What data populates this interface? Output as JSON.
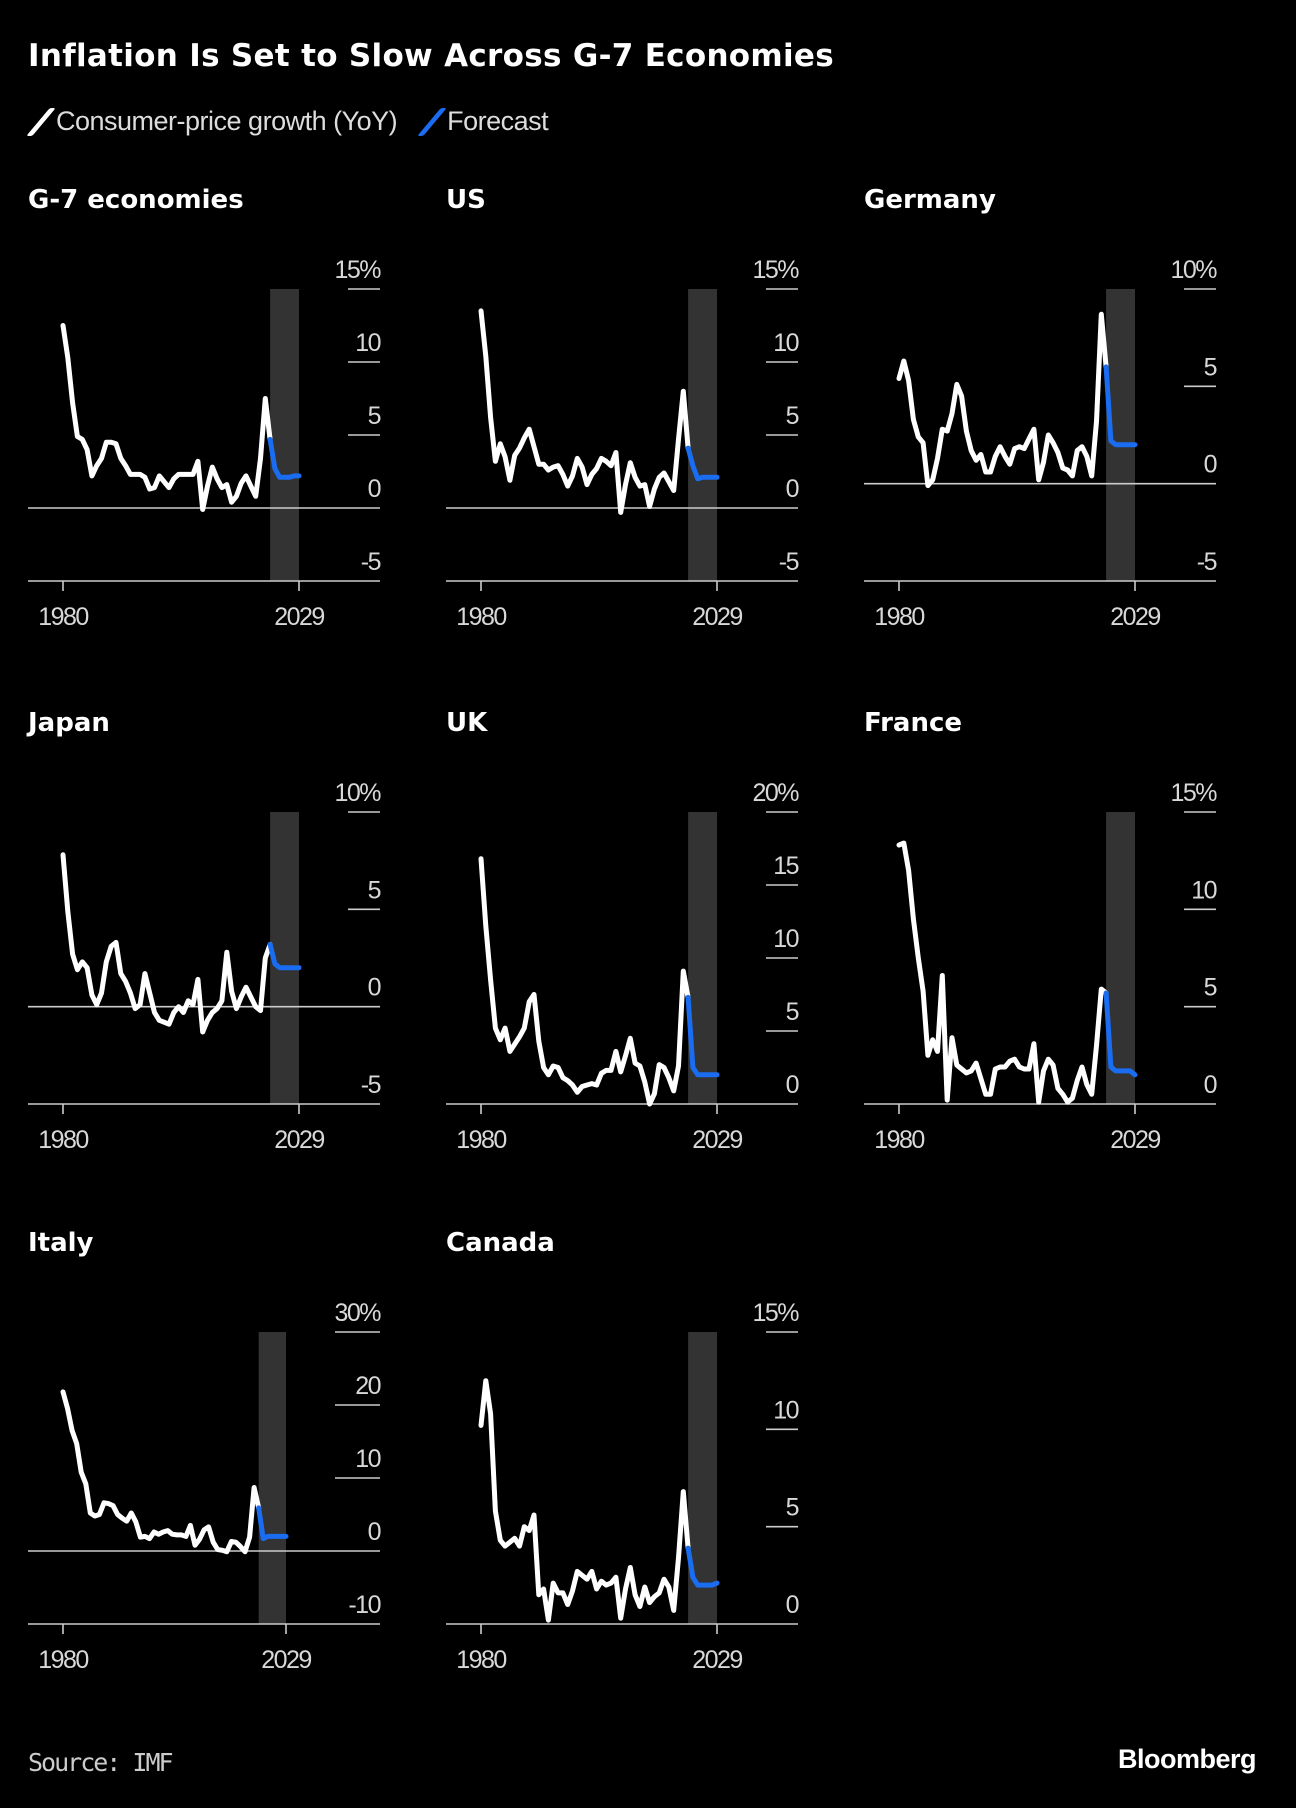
{
  "header": {
    "title": "Inflation Is Set to Slow Across G-7 Economies",
    "legend": [
      {
        "label": "Consumer-price growth (YoY)",
        "color": "#ffffff"
      },
      {
        "label": "Forecast",
        "color": "#1a6cf0"
      }
    ]
  },
  "footer": {
    "source": "Source: IMF",
    "brand": "Bloomberg"
  },
  "colors": {
    "actual": "#ffffff",
    "forecast": "#1a6cf0",
    "forecast_shade": "#333333",
    "axis": "#cccccc"
  },
  "chart_data": [
    {
      "type": "line",
      "title": "G-7 economies",
      "ylim": [
        -5,
        15
      ],
      "yticks": [
        -5,
        0,
        5,
        10,
        15
      ],
      "ytick_labels": [
        "-5",
        "0",
        "5",
        "10",
        "15%"
      ],
      "xticks": [
        "1980",
        "2029"
      ],
      "forecast_shaded": [
        "2023",
        "2029"
      ],
      "actual": {
        "start": 1980,
        "values": [
          12.5,
          10.3,
          7.2,
          4.9,
          4.7,
          4.0,
          2.2,
          2.9,
          3.4,
          4.5,
          4.5,
          4.4,
          3.4,
          2.9,
          2.3,
          2.3,
          2.3,
          2.1,
          1.3,
          1.4,
          2.2,
          1.8,
          1.4,
          2.0,
          2.3,
          2.3,
          2.3,
          2.3,
          3.2,
          -0.1,
          1.5,
          2.8,
          2.0,
          1.4,
          1.6,
          0.4,
          0.8,
          1.7,
          2.2,
          1.5,
          0.8,
          3.4,
          7.5,
          4.7
        ]
      },
      "forecast": {
        "start": 2023,
        "values": [
          4.7,
          2.7,
          2.1,
          2.1,
          2.1,
          2.2,
          2.2
        ]
      }
    },
    {
      "type": "line",
      "title": "US",
      "ylim": [
        -5,
        15
      ],
      "yticks": [
        -5,
        0,
        5,
        10,
        15
      ],
      "ytick_labels": [
        "-5",
        "0",
        "5",
        "10",
        "15%"
      ],
      "xticks": [
        "1980",
        "2029"
      ],
      "forecast_shaded": [
        "2023",
        "2029"
      ],
      "actual": {
        "start": 1980,
        "values": [
          13.5,
          10.4,
          6.2,
          3.2,
          4.4,
          3.5,
          1.9,
          3.6,
          4.1,
          4.8,
          5.4,
          4.2,
          3.0,
          3.0,
          2.6,
          2.8,
          2.9,
          2.3,
          1.5,
          2.2,
          3.4,
          2.8,
          1.6,
          2.3,
          2.7,
          3.4,
          3.2,
          2.9,
          3.8,
          -0.3,
          1.6,
          3.1,
          2.1,
          1.5,
          1.6,
          0.1,
          1.3,
          2.1,
          2.4,
          1.8,
          1.2,
          4.7,
          8.0,
          4.1
        ]
      },
      "forecast": {
        "start": 2023,
        "values": [
          4.1,
          2.9,
          2.0,
          2.1,
          2.1,
          2.1,
          2.1
        ]
      }
    },
    {
      "type": "line",
      "title": "Germany",
      "ylim": [
        -5,
        10
      ],
      "yticks": [
        -5,
        0,
        5,
        10
      ],
      "ytick_labels": [
        "-5",
        "0",
        "5",
        "10%"
      ],
      "xticks": [
        "1980",
        "2029"
      ],
      "forecast_shaded": [
        "2023",
        "2029"
      ],
      "actual": {
        "start": 1980,
        "values": [
          5.4,
          6.3,
          5.3,
          3.3,
          2.4,
          2.1,
          -0.1,
          0.2,
          1.3,
          2.8,
          2.7,
          3.6,
          5.1,
          4.5,
          2.7,
          1.7,
          1.2,
          1.5,
          0.6,
          0.6,
          1.4,
          1.9,
          1.4,
          1.0,
          1.8,
          1.9,
          1.8,
          2.3,
          2.8,
          0.2,
          1.1,
          2.5,
          2.1,
          1.6,
          0.8,
          0.7,
          0.4,
          1.7,
          1.9,
          1.4,
          0.4,
          3.2,
          8.7,
          6.0
        ]
      },
      "forecast": {
        "start": 2023,
        "values": [
          6.0,
          2.2,
          2.0,
          2.0,
          2.0,
          2.0,
          2.0
        ]
      }
    },
    {
      "type": "line",
      "title": "Japan",
      "ylim": [
        -5,
        10
      ],
      "yticks": [
        -5,
        0,
        5,
        10
      ],
      "ytick_labels": [
        "-5",
        "0",
        "5",
        "10%"
      ],
      "xticks": [
        "1980",
        "2029"
      ],
      "forecast_shaded": [
        "2023",
        "2029"
      ],
      "actual": {
        "start": 1980,
        "values": [
          7.8,
          4.9,
          2.7,
          1.9,
          2.3,
          2.0,
          0.6,
          0.1,
          0.7,
          2.3,
          3.1,
          3.3,
          1.7,
          1.3,
          0.7,
          -0.1,
          0.1,
          1.7,
          0.7,
          -0.3,
          -0.7,
          -0.8,
          -0.9,
          -0.3,
          0.0,
          -0.3,
          0.3,
          0.1,
          1.4,
          -1.3,
          -0.7,
          -0.3,
          -0.1,
          0.3,
          2.8,
          0.8,
          -0.1,
          0.5,
          1.0,
          0.5,
          0.0,
          -0.2,
          2.5,
          3.2
        ]
      },
      "forecast": {
        "start": 2023,
        "values": [
          3.2,
          2.2,
          2.0,
          2.0,
          2.0,
          2.0,
          2.0
        ]
      }
    },
    {
      "type": "line",
      "title": "UK",
      "ylim": [
        0,
        20
      ],
      "yticks": [
        0,
        5,
        10,
        15,
        20
      ],
      "ytick_labels": [
        "0",
        "5",
        "10",
        "15",
        "20%"
      ],
      "xticks": [
        "1980",
        "2029"
      ],
      "forecast_shaded": [
        "2023",
        "2029"
      ],
      "actual": {
        "start": 1980,
        "values": [
          16.8,
          12.2,
          8.5,
          5.2,
          4.4,
          5.2,
          3.6,
          4.1,
          4.6,
          5.2,
          7.0,
          7.5,
          4.3,
          2.5,
          2.0,
          2.6,
          2.5,
          1.8,
          1.6,
          1.3,
          0.8,
          1.2,
          1.3,
          1.4,
          1.3,
          2.1,
          2.3,
          2.3,
          3.6,
          2.2,
          3.3,
          4.5,
          2.8,
          2.6,
          1.5,
          0.0,
          0.7,
          2.7,
          2.5,
          1.8,
          0.9,
          2.6,
          9.1,
          7.3
        ]
      },
      "forecast": {
        "start": 2023,
        "values": [
          7.3,
          2.5,
          2.0,
          2.0,
          2.0,
          2.0,
          2.0
        ]
      }
    },
    {
      "type": "line",
      "title": "France",
      "ylim": [
        0,
        15
      ],
      "yticks": [
        0,
        5,
        10,
        15
      ],
      "ytick_labels": [
        "0",
        "5",
        "10",
        "15%"
      ],
      "xticks": [
        "1980",
        "2029"
      ],
      "forecast_shaded": [
        "2023",
        "2029"
      ],
      "actual": {
        "start": 1980,
        "values": [
          13.3,
          13.4,
          12.0,
          9.5,
          7.5,
          5.8,
          2.5,
          3.3,
          2.7,
          6.6,
          0.2,
          3.4,
          2.0,
          1.8,
          1.6,
          1.7,
          2.1,
          1.3,
          0.5,
          0.5,
          1.8,
          1.9,
          1.9,
          2.2,
          2.3,
          1.9,
          1.8,
          1.8,
          3.1,
          0.1,
          1.7,
          2.3,
          2.0,
          0.8,
          0.5,
          0.1,
          0.3,
          1.2,
          1.9,
          1.0,
          0.5,
          3.0,
          5.9,
          5.7
        ]
      },
      "forecast": {
        "start": 2023,
        "values": [
          5.7,
          1.9,
          1.7,
          1.7,
          1.7,
          1.7,
          1.5
        ]
      }
    },
    {
      "type": "line",
      "title": "Italy",
      "ylim": [
        -10,
        30
      ],
      "yticks": [
        -10,
        0,
        10,
        20,
        30
      ],
      "ytick_labels": [
        "-10",
        "0",
        "10",
        "20",
        "30%"
      ],
      "xticks": [
        "1980",
        "2029"
      ],
      "forecast_shaded": [
        "2023",
        "2029"
      ],
      "actual": {
        "start": 1980,
        "values": [
          21.8,
          19.5,
          16.5,
          14.7,
          10.8,
          9.2,
          5.2,
          4.8,
          5.0,
          6.6,
          6.5,
          6.2,
          5.0,
          4.5,
          4.1,
          5.2,
          4.0,
          1.9,
          2.0,
          1.7,
          2.6,
          2.3,
          2.6,
          2.8,
          2.3,
          2.2,
          2.2,
          2.0,
          3.5,
          0.8,
          1.6,
          2.9,
          3.3,
          1.2,
          0.2,
          0.1,
          -0.1,
          1.3,
          1.2,
          0.6,
          -0.1,
          1.9,
          8.7,
          5.9
        ]
      },
      "forecast": {
        "start": 2023,
        "values": [
          5.9,
          1.7,
          2.0,
          2.0,
          2.0,
          2.0,
          2.0
        ]
      }
    },
    {
      "type": "line",
      "title": "Canada",
      "ylim": [
        0,
        15
      ],
      "yticks": [
        0,
        5,
        10,
        15
      ],
      "ytick_labels": [
        "0",
        "5",
        "10",
        "15%"
      ],
      "xticks": [
        "1980",
        "2029"
      ],
      "forecast_shaded": [
        "2023",
        "2029"
      ],
      "actual": {
        "start": 1980,
        "values": [
          10.2,
          12.5,
          10.8,
          5.8,
          4.3,
          4.0,
          4.2,
          4.4,
          4.0,
          5.0,
          4.8,
          5.6,
          1.5,
          1.8,
          0.2,
          2.1,
          1.6,
          1.6,
          1.0,
          1.7,
          2.7,
          2.5,
          2.3,
          2.7,
          1.8,
          2.2,
          2.0,
          2.1,
          2.4,
          0.3,
          1.8,
          2.9,
          1.5,
          0.9,
          1.9,
          1.1,
          1.4,
          1.6,
          2.3,
          1.9,
          0.7,
          3.4,
          6.8,
          3.9
        ]
      },
      "forecast": {
        "start": 2023,
        "values": [
          3.9,
          2.4,
          2.0,
          2.0,
          2.0,
          2.0,
          2.1
        ]
      }
    }
  ]
}
